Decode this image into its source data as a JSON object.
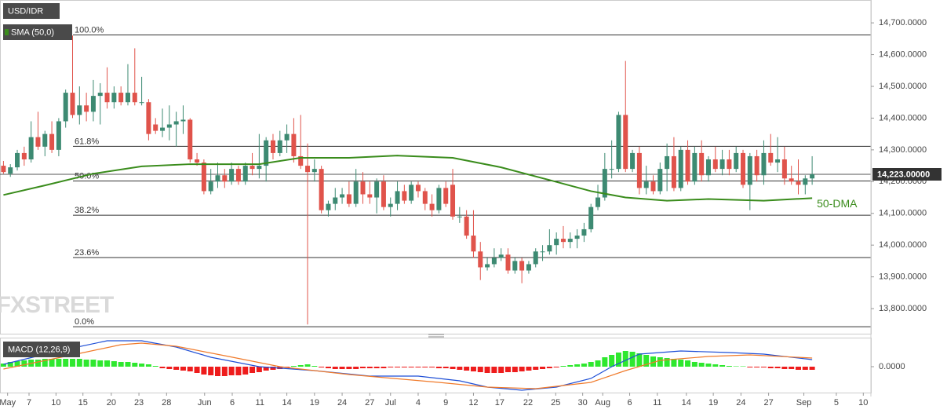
{
  "chart_data": [
    {
      "type": "candlestick",
      "title": "USD/IDR",
      "indicator": "SMA (50,0)",
      "watermark": "FXSTREET",
      "xlim": [
        -0.5,
        125.5
      ],
      "ylim": [
        13721,
        14772
      ],
      "yticks": [
        {
          "value": 13800,
          "label": "13,800.0000"
        },
        {
          "value": 13900,
          "label": "13,900.0000"
        },
        {
          "value": 14000,
          "label": "14,000.0000"
        },
        {
          "value": 14100,
          "label": "14,100.0000"
        },
        {
          "value": 14200,
          "label": "14,200.0000"
        },
        {
          "value": 14300,
          "label": "14,300.0000"
        },
        {
          "value": 14400,
          "label": "14,400.0000"
        },
        {
          "value": 14500,
          "label": "14,500.0000"
        },
        {
          "value": 14600,
          "label": "14,600.0000"
        },
        {
          "value": 14700,
          "label": "14,700.0000"
        }
      ],
      "up_color": "#3d8a72",
      "down_color": "#e0534b",
      "candles": {
        "open": [
          14250,
          14225,
          14245,
          14290,
          14270,
          14340,
          14310,
          14350,
          14300,
          14390,
          14480,
          14410,
          14440,
          14420,
          14470,
          14480,
          14450,
          14480,
          14450,
          14480,
          14450,
          14450,
          14380,
          14360,
          14370,
          14380,
          14390,
          14395,
          14270,
          14260,
          14170,
          14200,
          14220,
          14200,
          14240,
          14200,
          14250,
          14240,
          14250,
          14330,
          14290,
          14330,
          14350,
          14280,
          14250,
          14230,
          14240,
          14110,
          14130,
          14150,
          14160,
          14130,
          14200,
          14160,
          14150,
          14200,
          14120,
          14130,
          14170,
          14140,
          14190,
          14170,
          14130,
          14110,
          14180,
          14190,
          14090,
          14090,
          14030,
          13980,
          13930,
          13940,
          13960,
          13970,
          13920,
          13950,
          13920,
          13940,
          13980,
          13980,
          14000,
          14020,
          14010,
          14020,
          14030,
          14050,
          14120,
          14150,
          14240,
          14240,
          14410,
          14240,
          14290,
          14180,
          14200,
          14170,
          14240,
          14280,
          14180,
          14300,
          14200,
          14290,
          14220,
          14270,
          14240,
          14270,
          14240,
          14290,
          14190,
          14280,
          14220,
          14290,
          14260,
          14270,
          14210,
          14200,
          14190,
          14210
        ],
        "high": [
          14265,
          14255,
          14300,
          14310,
          14390,
          14420,
          14360,
          14390,
          14400,
          14490,
          14660,
          14500,
          14480,
          14520,
          14510,
          14560,
          14500,
          14500,
          14570,
          14620,
          14530,
          14460,
          14400,
          14430,
          14440,
          14420,
          14440,
          14400,
          14290,
          14270,
          14240,
          14260,
          14240,
          14260,
          14250,
          14260,
          14290,
          14350,
          14340,
          14350,
          14360,
          14380,
          14400,
          14410,
          14320,
          14270,
          14250,
          14140,
          14180,
          14180,
          14200,
          14240,
          14230,
          14200,
          14210,
          14220,
          14150,
          14200,
          14190,
          14200,
          14200,
          14180,
          14160,
          14190,
          14200,
          14240,
          14120,
          14110,
          14110,
          14010,
          13960,
          13990,
          13990,
          13990,
          13960,
          13960,
          13950,
          13990,
          14000,
          14050,
          14040,
          14060,
          14040,
          14050,
          14070,
          14130,
          14190,
          14290,
          14330,
          14420,
          14580,
          14300,
          14310,
          14250,
          14220,
          14260,
          14320,
          14340,
          14310,
          14330,
          14310,
          14330,
          14280,
          14310,
          14300,
          14300,
          14310,
          14300,
          14290,
          14300,
          14330,
          14350,
          14340,
          14310,
          14250,
          14270,
          14220,
          14280
        ],
        "low": [
          14225,
          14215,
          14235,
          14250,
          14260,
          14300,
          14280,
          14290,
          14280,
          14370,
          14400,
          14380,
          14390,
          14390,
          14380,
          14430,
          14430,
          14440,
          14440,
          14440,
          14440,
          14330,
          14350,
          14340,
          14330,
          14310,
          14350,
          14260,
          14250,
          14160,
          14160,
          14180,
          14180,
          14190,
          14190,
          14190,
          14220,
          14210,
          14200,
          14270,
          14280,
          14290,
          14260,
          14240,
          13750,
          14200,
          14100,
          14090,
          14110,
          14130,
          14120,
          14120,
          14130,
          14130,
          14100,
          14110,
          14090,
          14110,
          14130,
          14130,
          14150,
          14110,
          14090,
          14100,
          14120,
          14080,
          14070,
          14020,
          13960,
          13890,
          13920,
          13930,
          13950,
          13910,
          13910,
          13880,
          13910,
          13930,
          13950,
          13970,
          13970,
          13990,
          13990,
          13990,
          14010,
          14040,
          14110,
          14140,
          14210,
          14230,
          14230,
          14230,
          14160,
          14160,
          14160,
          14160,
          14170,
          14170,
          14170,
          14190,
          14190,
          14200,
          14200,
          14230,
          14220,
          14220,
          14230,
          14180,
          14110,
          14200,
          14190,
          14250,
          14230,
          14190,
          14190,
          14160,
          14160,
          14190
        ],
        "close": [
          14230,
          14245,
          14290,
          14270,
          14340,
          14310,
          14350,
          14300,
          14390,
          14480,
          14410,
          14440,
          14420,
          14470,
          14480,
          14450,
          14480,
          14450,
          14480,
          14450,
          14450,
          14350,
          14360,
          14370,
          14380,
          14390,
          14395,
          14270,
          14260,
          14170,
          14200,
          14220,
          14200,
          14240,
          14200,
          14250,
          14240,
          14250,
          14330,
          14290,
          14330,
          14350,
          14280,
          14250,
          14230,
          14240,
          14110,
          14130,
          14150,
          14160,
          14130,
          14200,
          14160,
          14150,
          14200,
          14120,
          14130,
          14170,
          14140,
          14190,
          14170,
          14130,
          14110,
          14180,
          14130,
          14090,
          14090,
          14030,
          13980,
          13930,
          13940,
          13960,
          13970,
          13920,
          13950,
          13920,
          13940,
          13980,
          13980,
          14000,
          14020,
          14010,
          14020,
          14030,
          14050,
          14120,
          14150,
          14240,
          14240,
          14410,
          14240,
          14290,
          14180,
          14200,
          14170,
          14240,
          14280,
          14180,
          14300,
          14200,
          14290,
          14220,
          14270,
          14240,
          14270,
          14240,
          14290,
          14190,
          14280,
          14220,
          14290,
          14260,
          14270,
          14210,
          14200,
          14190,
          14210,
          14223
        ]
      },
      "ma": {
        "name": "50-DMA",
        "color": "#3a8c1c",
        "x": [
          0,
          6,
          13,
          20,
          27,
          37,
          43,
          50,
          57,
          65,
          72,
          79,
          85,
          90,
          96,
          102,
          110,
          117
        ],
        "values": [
          14158,
          14188,
          14225,
          14248,
          14255,
          14255,
          14275,
          14275,
          14282,
          14275,
          14245,
          14205,
          14170,
          14150,
          14140,
          14145,
          14140,
          14148
        ]
      },
      "fib": [
        {
          "label": "100.0%",
          "value": 14662
        },
        {
          "label": "61.8%",
          "value": 14311
        },
        {
          "label": "50.0%",
          "value": 14202
        },
        {
          "label": "38.2%",
          "value": 14094
        },
        {
          "label": "23.6%",
          "value": 13961
        },
        {
          "label": "0.0%",
          "value": 13743
        }
      ],
      "last_price": {
        "value": 14223,
        "label": "14,223.00000"
      }
    },
    {
      "type": "macd",
      "title": "MACD (12,26,9)",
      "xlim": [
        -0.5,
        125.5
      ],
      "ylim": [
        -33,
        37
      ],
      "yticks": [
        {
          "value": 0,
          "label": "0.0000"
        }
      ],
      "xticks": [
        {
          "value": 0.6,
          "label": "May"
        },
        {
          "value": 3.7,
          "label": "7"
        },
        {
          "value": 7.6,
          "label": "10"
        },
        {
          "value": 11.5,
          "label": "15"
        },
        {
          "value": 15.6,
          "label": "20"
        },
        {
          "value": 19.6,
          "label": "23"
        },
        {
          "value": 23.6,
          "label": "28"
        },
        {
          "value": 29.1,
          "label": "Jun"
        },
        {
          "value": 33.1,
          "label": "6"
        },
        {
          "value": 37.1,
          "label": "11"
        },
        {
          "value": 41,
          "label": "14"
        },
        {
          "value": 45,
          "label": "19"
        },
        {
          "value": 49,
          "label": "24"
        },
        {
          "value": 53,
          "label": "27"
        },
        {
          "value": 56,
          "label": "Jul"
        },
        {
          "value": 60,
          "label": "4"
        },
        {
          "value": 64,
          "label": "9"
        },
        {
          "value": 68,
          "label": "12"
        },
        {
          "value": 71.8,
          "label": "17"
        },
        {
          "value": 75.9,
          "label": "22"
        },
        {
          "value": 79.9,
          "label": "25"
        },
        {
          "value": 83.8,
          "label": "30"
        },
        {
          "value": 86.7,
          "label": "Aug"
        },
        {
          "value": 90.6,
          "label": "6"
        },
        {
          "value": 94.6,
          "label": "11"
        },
        {
          "value": 98.8,
          "label": "14"
        },
        {
          "value": 102.7,
          "label": "19"
        },
        {
          "value": 106.7,
          "label": "24"
        },
        {
          "value": 110.7,
          "label": "27"
        },
        {
          "value": 115.8,
          "label": "Sep"
        },
        {
          "value": 120.5,
          "label": "5"
        },
        {
          "value": 124.4,
          "label": "10"
        }
      ],
      "histogram": {
        "up_color": "#2ee82e",
        "down_color": "#ee1c1c",
        "values": [
          4,
          6,
          7,
          8,
          9,
          9,
          10,
          10,
          10,
          10,
          10,
          10,
          9,
          9,
          8,
          8,
          7,
          6,
          6,
          5,
          4,
          3,
          1,
          -2,
          -3,
          -4,
          -5,
          -6,
          -8,
          -10,
          -11,
          -12,
          -12,
          -11,
          -11,
          -10,
          -8,
          -7,
          -5,
          -4,
          -3,
          -1,
          1,
          2,
          3,
          1,
          -1,
          -2,
          -3,
          -3,
          -3,
          -3,
          -2,
          -2,
          -2,
          -2,
          -1,
          -1,
          -1,
          -1,
          -1,
          -1,
          -1,
          -2,
          -2,
          -3,
          -4,
          -5,
          -6,
          -7,
          -8,
          -8,
          -8,
          -7,
          -7,
          -6,
          -5,
          -4,
          -3,
          -2,
          -1,
          1,
          2,
          3,
          4,
          6,
          8,
          12,
          15,
          18,
          20,
          19,
          17,
          15,
          13,
          12,
          11,
          10,
          9,
          8,
          6,
          5,
          4,
          3,
          2,
          1,
          0.5,
          0.5,
          -1,
          -1,
          -1,
          -2,
          -2,
          -3,
          -3,
          -4,
          -4,
          -4
        ]
      },
      "series": [
        {
          "color": "#1f4fd6",
          "x": [
            0,
            8,
            15,
            20,
            25,
            30,
            37,
            45,
            53,
            60,
            66,
            70,
            75,
            80,
            85,
            88,
            92,
            98,
            105,
            110,
            117
          ],
          "values": [
            3,
            20,
            33,
            33,
            25,
            12,
            0,
            -5,
            -12,
            -12,
            -18,
            -26,
            -30,
            -26,
            -15,
            0,
            16,
            20,
            18,
            16,
            9
          ]
        },
        {
          "color": "#f07a2a",
          "x": [
            0,
            10,
            17,
            20,
            25,
            32,
            40,
            50,
            63,
            70,
            77,
            85,
            90,
            95,
            102,
            108,
            117
          ],
          "values": [
            -3,
            15,
            28,
            30,
            26,
            14,
            0,
            -10,
            -20,
            -26,
            -28,
            -20,
            -5,
            8,
            13,
            15,
            11
          ]
        }
      ]
    }
  ]
}
